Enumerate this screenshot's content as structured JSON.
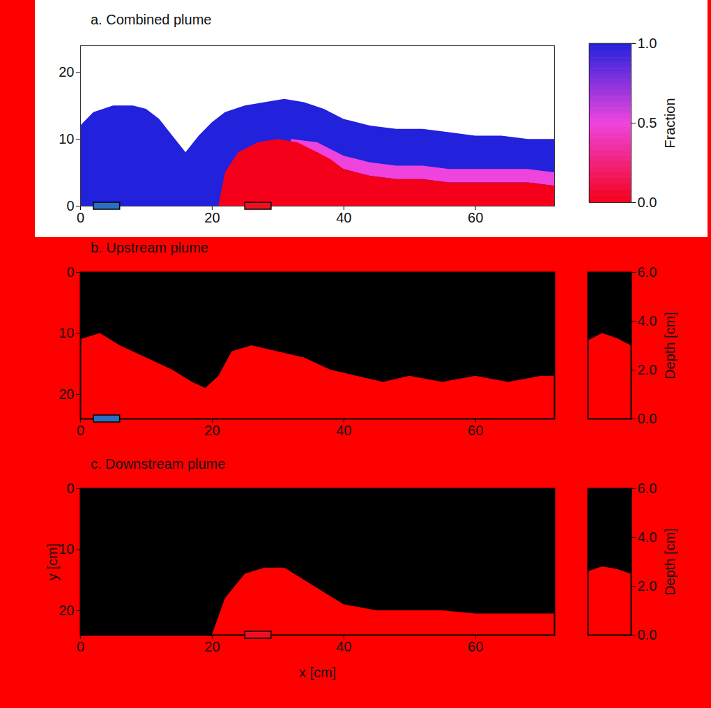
{
  "chart_data": [
    {
      "type": "area",
      "title": "a. Combined plume",
      "xlim": [
        0,
        72
      ],
      "xticks": [
        0,
        20,
        40,
        60
      ],
      "ylim": [
        0,
        24
      ],
      "yticks": [
        0,
        10,
        20
      ],
      "series": [
        {
          "fraction": 1,
          "x": [
            0,
            2,
            5,
            8,
            10,
            12,
            14,
            16,
            18,
            20,
            22,
            25,
            28,
            31,
            34,
            37,
            40,
            44,
            48,
            52,
            56,
            60,
            64,
            68,
            72
          ],
          "y1": [
            0,
            0,
            0,
            0,
            0,
            0,
            0,
            0,
            0,
            0,
            0,
            0,
            0,
            0,
            0,
            0,
            0,
            0,
            0,
            0,
            0,
            0,
            0,
            0,
            0
          ],
          "y2": [
            12,
            14,
            15,
            15,
            14.5,
            13,
            10.5,
            8,
            10.5,
            12.5,
            14,
            15,
            15.5,
            16,
            15.5,
            14.5,
            13,
            12,
            11.5,
            11.5,
            11,
            10.5,
            10.5,
            10,
            10
          ]
        },
        {
          "fraction": 0.5,
          "x": [
            32,
            36,
            40,
            44,
            48,
            52,
            56,
            60,
            64,
            68,
            72
          ],
          "y1": [
            9.5,
            8,
            5.5,
            4.5,
            4,
            4,
            3.5,
            3.5,
            3.5,
            3.5,
            3
          ],
          "y2": [
            10,
            9.5,
            7.5,
            6.5,
            6,
            6,
            5.5,
            5.5,
            5.5,
            5.5,
            5
          ]
        },
        {
          "fraction": 0,
          "x": [
            21,
            22,
            24,
            27,
            30,
            33,
            36,
            38,
            40,
            44,
            48,
            52,
            56,
            60,
            64,
            68,
            72
          ],
          "y1": [
            0,
            0,
            0,
            0,
            0,
            0,
            0,
            0,
            0,
            0,
            0,
            0,
            0,
            0,
            0,
            0,
            0
          ],
          "y2": [
            0,
            5,
            8,
            9.5,
            10,
            9.5,
            8,
            7,
            5.5,
            4.5,
            4,
            4,
            3.5,
            3.5,
            3.5,
            3.5,
            3
          ]
        }
      ],
      "sources": [
        {
          "x": [
            2,
            6
          ],
          "color": "#2a6fc0"
        },
        {
          "x": [
            25,
            29
          ],
          "color": "#f01020"
        }
      ],
      "colorbar": {
        "label": "Fraction",
        "range": [
          0,
          1
        ],
        "ticks": [
          0,
          0.5,
          1
        ],
        "colors": [
          "#f5001a",
          "#ee44dd",
          "#2222dd"
        ]
      }
    },
    {
      "type": "area",
      "title": "b. Upstream plume",
      "xlim": [
        0,
        72
      ],
      "xticks": [
        0,
        20,
        40,
        60
      ],
      "ylim": [
        24,
        0
      ],
      "yticks": [
        0,
        10,
        20
      ],
      "series": [
        {
          "color": "#ff0000",
          "x": [
            0,
            3,
            6,
            10,
            14,
            17,
            19,
            21,
            23,
            26,
            30,
            34,
            38,
            42,
            46,
            50,
            55,
            60,
            65,
            70,
            72
          ],
          "y1": [
            11,
            10,
            12,
            14,
            16,
            18,
            19,
            17,
            13,
            12,
            13,
            14,
            16,
            17,
            18,
            17,
            18,
            17,
            18,
            17,
            17
          ],
          "y2": [
            24,
            24,
            24,
            24,
            24,
            24,
            24,
            24,
            24,
            24,
            24,
            24,
            24,
            24,
            24,
            24,
            24,
            24,
            24,
            24,
            24
          ]
        }
      ],
      "sources": [
        {
          "x": [
            2,
            6
          ],
          "color": "#2a6fc0"
        }
      ],
      "inset": {
        "type": "area",
        "ylabel": "Depth [cm]",
        "ylim": [
          0,
          6
        ],
        "yticks": [
          0,
          2,
          4,
          6
        ],
        "xlim": [
          0,
          3
        ],
        "tick_labels": "y",
        "color": "#ff0000",
        "x": [
          0,
          1,
          2,
          3
        ],
        "values": [
          3.2,
          3.5,
          3.3,
          3.0
        ]
      }
    },
    {
      "type": "area",
      "title": "c. Downstream plume",
      "xlabel": "x [cm]",
      "ylabel": "y [cm]",
      "xlim": [
        0,
        72
      ],
      "xticks": [
        0,
        20,
        40,
        60
      ],
      "ylim": [
        24,
        0
      ],
      "yticks": [
        0,
        10,
        20
      ],
      "series": [
        {
          "color": "#ff0000",
          "x": [
            20,
            22,
            25,
            28,
            31,
            34,
            37,
            40,
            45,
            50,
            55,
            60,
            65,
            70,
            72
          ],
          "y1": [
            24,
            18,
            14,
            13,
            13,
            15,
            17,
            19,
            20,
            20,
            20,
            20.5,
            20.5,
            20.5,
            20.5
          ],
          "y2": [
            24,
            24,
            24,
            24,
            24,
            24,
            24,
            24,
            24,
            24,
            24,
            24,
            24,
            24,
            24
          ]
        }
      ],
      "sources": [
        {
          "x": [
            25,
            29
          ],
          "color": "#f01020"
        }
      ],
      "inset": {
        "type": "area",
        "ylabel": "Depth [cm]",
        "ylim": [
          0,
          6
        ],
        "yticks": [
          0,
          2,
          4,
          6
        ],
        "xlim": [
          0,
          3
        ],
        "tick_labels": "y",
        "color": "#ff0000",
        "x": [
          0,
          1,
          2,
          3
        ],
        "values": [
          2.6,
          2.8,
          2.7,
          2.5
        ]
      }
    }
  ]
}
